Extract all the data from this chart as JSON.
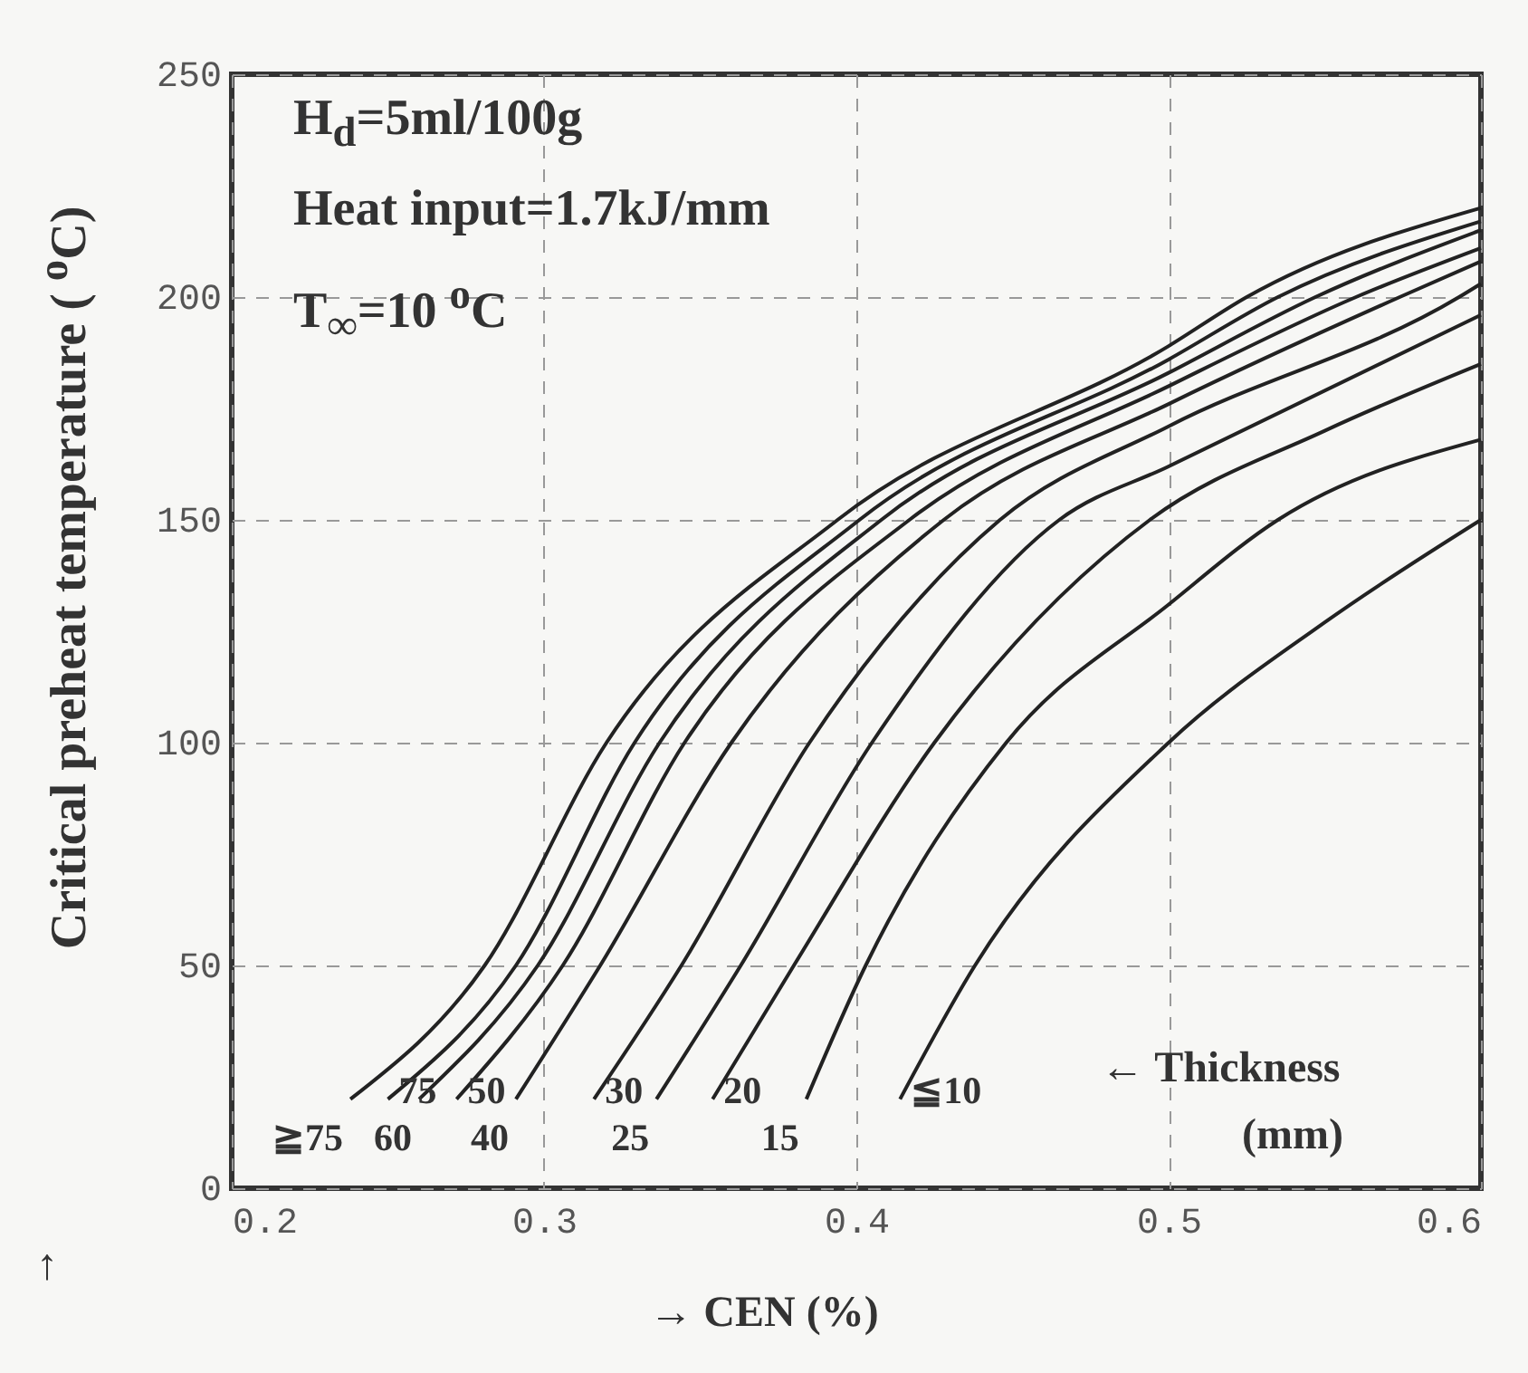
{
  "chart_data": {
    "type": "line",
    "xlabel": "→  CEN  (%)",
    "ylabel": "Critical preheat temperature ( $^{o}$C)",
    "annotations": [
      "H$_{d}$=5ml/100g",
      "Heat input=1.7kJ/mm",
      "T$_{∞}$=10 $^{o}$C",
      "← Thickness",
      "(mm)",
      "↑"
    ],
    "xlim": [
      0.2,
      0.6
    ],
    "xticks": [
      {
        "value": 0.2,
        "label": "0.2"
      },
      {
        "value": 0.3,
        "label": "0.3"
      },
      {
        "value": 0.4,
        "label": "0.4"
      },
      {
        "value": 0.5,
        "label": "0.5"
      },
      {
        "value": 0.6,
        "label": "0.6"
      }
    ],
    "ylim": [
      0,
      250
    ],
    "yticks": [
      0,
      50,
      100,
      150,
      200,
      250
    ],
    "grid": true,
    "legend": false,
    "line_style": "solid",
    "series": [
      {
        "name": "≧75",
        "color": "#222222",
        "x": [
          0.238,
          0.281,
          0.32,
          0.394,
          0.5,
          0.525,
          0.6
        ],
        "values": [
          20,
          50,
          100,
          150,
          189,
          200,
          220
        ]
      },
      {
        "name": "75",
        "color": "#222222",
        "x": [
          0.25,
          0.291,
          0.329,
          0.401,
          0.5,
          0.535,
          0.6
        ],
        "values": [
          20,
          50,
          100,
          150,
          186,
          200,
          217
        ]
      },
      {
        "name": "60",
        "color": "#222222",
        "x": [
          0.26,
          0.298,
          0.337,
          0.408,
          0.5,
          0.547,
          0.6
        ],
        "values": [
          20,
          50,
          100,
          150,
          183,
          200,
          215
        ]
      },
      {
        "name": "50",
        "color": "#222222",
        "x": [
          0.272,
          0.306,
          0.345,
          0.417,
          0.5,
          0.56,
          0.6
        ],
        "values": [
          20,
          50,
          100,
          150,
          180,
          200,
          211
        ]
      },
      {
        "name": "40",
        "color": "#222222",
        "x": [
          0.291,
          0.318,
          0.36,
          0.428,
          0.5,
          0.574,
          0.6
        ],
        "values": [
          20,
          50,
          100,
          150,
          176,
          200,
          208
        ]
      },
      {
        "name": "30",
        "color": "#222222",
        "x": [
          0.316,
          0.344,
          0.385,
          0.446,
          0.5,
          0.593,
          0.6
        ],
        "values": [
          20,
          50,
          100,
          150,
          171,
          200,
          203
        ]
      },
      {
        "name": "25",
        "color": "#222222",
        "x": [
          0.336,
          0.363,
          0.405,
          0.465,
          0.5,
          0.6
        ],
        "values": [
          20,
          50,
          100,
          150,
          162,
          196
        ]
      },
      {
        "name": "20",
        "color": "#222222",
        "x": [
          0.354,
          0.38,
          0.425,
          0.494,
          0.55,
          0.6
        ],
        "values": [
          20,
          50,
          100,
          150,
          170,
          185
        ]
      },
      {
        "name": "15",
        "color": "#222222",
        "x": [
          0.384,
          0.403,
          0.448,
          0.5,
          0.535,
          0.6
        ],
        "values": [
          20,
          50,
          100,
          131,
          150,
          168
        ]
      },
      {
        "name": "≦10",
        "color": "#222222",
        "x": [
          0.414,
          0.438,
          0.5,
          0.55,
          0.6
        ],
        "values": [
          20,
          50,
          100,
          127,
          150
        ]
      }
    ]
  }
}
